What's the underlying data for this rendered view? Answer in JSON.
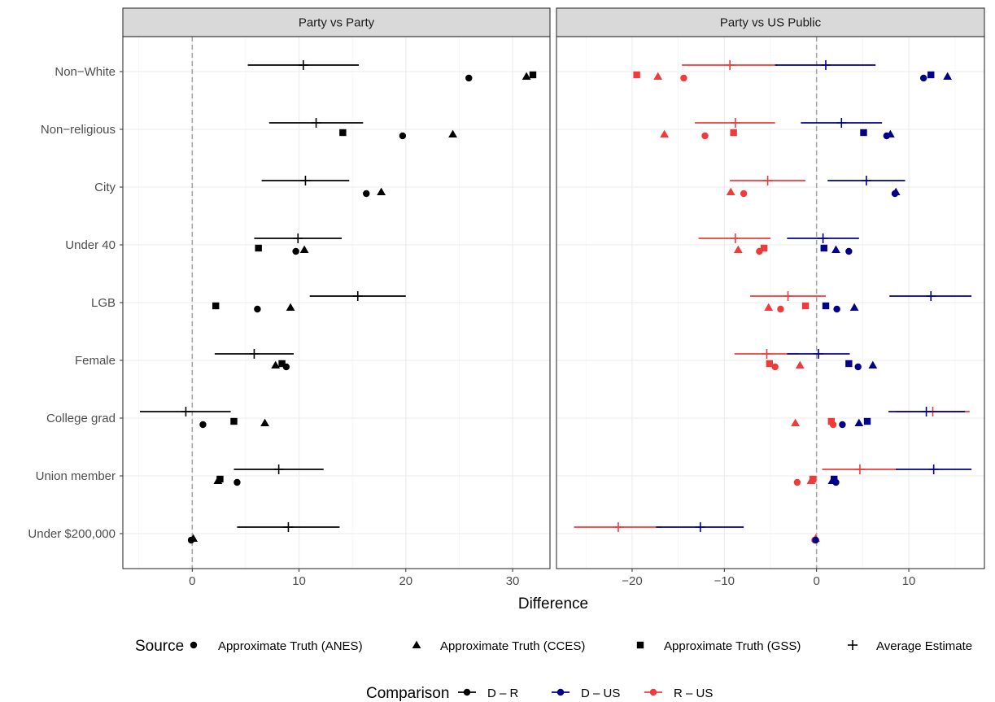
{
  "chart_data": {
    "type": "scatter",
    "xlabel": "Difference",
    "categories": [
      "Non−White",
      "Non−religious",
      "City",
      "Under 40",
      "LGB",
      "Female",
      "College grad",
      "Union member",
      "Under $200,000"
    ],
    "panels": [
      {
        "title": "Party vs Party",
        "xlim": [
          -6.5,
          33.5
        ],
        "xticks": [
          0,
          10,
          20,
          30
        ],
        "xtick_labels": [
          "0",
          "10",
          "20",
          "30"
        ],
        "comparisons": [
          {
            "name": "D – R",
            "color": "#000000",
            "estimates": [
              {
                "cat": 0,
                "est": 10.4,
                "lo": 5.2,
                "hi": 15.6
              },
              {
                "cat": 1,
                "est": 11.6,
                "lo": 7.2,
                "hi": 16.0
              },
              {
                "cat": 2,
                "est": 10.6,
                "lo": 6.5,
                "hi": 14.7
              },
              {
                "cat": 3,
                "est": 9.9,
                "lo": 5.8,
                "hi": 14.0
              },
              {
                "cat": 4,
                "est": 15.5,
                "lo": 11.0,
                "hi": 20.0
              },
              {
                "cat": 5,
                "est": 5.8,
                "lo": 2.1,
                "hi": 9.5
              },
              {
                "cat": 6,
                "est": -0.6,
                "lo": -4.9,
                "hi": 3.6
              },
              {
                "cat": 7,
                "est": 8.1,
                "lo": 3.9,
                "hi": 12.3
              },
              {
                "cat": 8,
                "est": 9.0,
                "lo": 4.2,
                "hi": 13.8
              }
            ],
            "truths": [
              {
                "cat": 0,
                "anes": 25.9,
                "cces": 31.3,
                "gss": 31.9
              },
              {
                "cat": 1,
                "anes": 19.7,
                "cces": 24.4,
                "gss": 14.1
              },
              {
                "cat": 2,
                "anes": 16.3,
                "cces": 17.7,
                "gss": null
              },
              {
                "cat": 3,
                "anes": 9.7,
                "cces": 10.5,
                "gss": 6.2
              },
              {
                "cat": 4,
                "anes": 6.1,
                "cces": 9.2,
                "gss": 2.2
              },
              {
                "cat": 5,
                "anes": 8.8,
                "cces": 7.8,
                "gss": 8.4
              },
              {
                "cat": 6,
                "anes": 1.0,
                "cces": 6.8,
                "gss": 3.9
              },
              {
                "cat": 7,
                "anes": 4.2,
                "cces": 2.4,
                "gss": 2.6
              },
              {
                "cat": 8,
                "anes": -0.1,
                "cces": 0.1,
                "gss": null
              }
            ]
          }
        ]
      },
      {
        "title": "Party vs US Public",
        "xlim": [
          -28.2,
          18.2
        ],
        "xticks": [
          -20,
          -10,
          0,
          10
        ],
        "xtick_labels": [
          "−20",
          "−10",
          "0",
          "10"
        ],
        "comparisons": [
          {
            "name": "R – US",
            "color": "#f03b3b",
            "estimates": [
              {
                "cat": 0,
                "est": -9.4,
                "lo": -14.6,
                "hi": -4.2
              },
              {
                "cat": 1,
                "est": -8.8,
                "lo": -13.2,
                "hi": -4.5
              },
              {
                "cat": 2,
                "est": -5.3,
                "lo": -9.4,
                "hi": -1.2
              },
              {
                "cat": 3,
                "est": -8.8,
                "lo": -12.8,
                "hi": -5.0
              },
              {
                "cat": 4,
                "est": -3.1,
                "lo": -7.2,
                "hi": 1.0
              },
              {
                "cat": 5,
                "est": -5.4,
                "lo": -8.9,
                "hi": -1.9
              },
              {
                "cat": 6,
                "est": 12.6,
                "lo": 8.6,
                "hi": 16.6
              },
              {
                "cat": 7,
                "est": 4.7,
                "lo": 0.6,
                "hi": 8.8
              },
              {
                "cat": 8,
                "est": -21.5,
                "lo": -26.3,
                "hi": -16.8
              }
            ],
            "truths": [
              {
                "cat": 0,
                "anes": -14.4,
                "cces": -17.2,
                "gss": -19.5
              },
              {
                "cat": 1,
                "anes": -12.1,
                "cces": -16.5,
                "gss": -9.0
              },
              {
                "cat": 2,
                "anes": -7.9,
                "cces": -9.3,
                "gss": null
              },
              {
                "cat": 3,
                "anes": -6.2,
                "cces": -8.5,
                "gss": -5.7
              },
              {
                "cat": 4,
                "anes": -3.9,
                "cces": -5.2,
                "gss": -1.2
              },
              {
                "cat": 5,
                "anes": -4.5,
                "cces": -1.8,
                "gss": -5.1
              },
              {
                "cat": 6,
                "anes": 1.8,
                "cces": -2.3,
                "gss": 1.6
              },
              {
                "cat": 7,
                "anes": -2.1,
                "cces": -0.6,
                "gss": -0.4
              },
              {
                "cat": 8,
                "anes": -0.2,
                "cces": -0.1,
                "gss": null
              }
            ]
          },
          {
            "name": "D – US",
            "color": "#00008b",
            "estimates": [
              {
                "cat": 0,
                "est": 1.0,
                "lo": -4.5,
                "hi": 6.4
              },
              {
                "cat": 1,
                "est": 2.7,
                "lo": -1.7,
                "hi": 7.1
              },
              {
                "cat": 2,
                "est": 5.4,
                "lo": 1.2,
                "hi": 9.6
              },
              {
                "cat": 3,
                "est": 0.7,
                "lo": -3.2,
                "hi": 4.6
              },
              {
                "cat": 4,
                "est": 12.4,
                "lo": 7.9,
                "hi": 16.8
              },
              {
                "cat": 5,
                "est": 0.2,
                "lo": -3.2,
                "hi": 3.6
              },
              {
                "cat": 6,
                "est": 11.9,
                "lo": 7.8,
                "hi": 16.1
              },
              {
                "cat": 7,
                "est": 12.7,
                "lo": 8.6,
                "hi": 16.8
              },
              {
                "cat": 8,
                "est": -12.6,
                "lo": -17.4,
                "hi": -7.9
              }
            ],
            "truths": [
              {
                "cat": 0,
                "anes": 11.6,
                "cces": 14.2,
                "gss": 12.4
              },
              {
                "cat": 1,
                "anes": 7.6,
                "cces": 8.0,
                "gss": 5.1
              },
              {
                "cat": 2,
                "anes": 8.5,
                "cces": 8.6,
                "gss": null
              },
              {
                "cat": 3,
                "anes": 3.5,
                "cces": 2.1,
                "gss": 0.8
              },
              {
                "cat": 4,
                "anes": 2.2,
                "cces": 4.1,
                "gss": 1.0
              },
              {
                "cat": 5,
                "anes": 4.5,
                "cces": 6.1,
                "gss": 3.5
              },
              {
                "cat": 6,
                "anes": 2.8,
                "cces": 4.6,
                "gss": 5.5
              },
              {
                "cat": 7,
                "anes": 2.1,
                "cces": 1.7,
                "gss": 1.9
              },
              {
                "cat": 8,
                "anes": -0.1,
                "cces": null,
                "gss": null
              }
            ]
          }
        ]
      }
    ],
    "legend": {
      "source_title": "Source",
      "source_items": [
        {
          "label": "Approximate Truth (ANES)",
          "shape": "circle"
        },
        {
          "label": "Approximate Truth (CCES)",
          "shape": "triangle"
        },
        {
          "label": "Approximate Truth (GSS)",
          "shape": "square"
        },
        {
          "label": "Average Estimate",
          "shape": "plus"
        }
      ],
      "comparison_title": "Comparison",
      "comparison_items": [
        {
          "label": "D – R",
          "color": "#000000"
        },
        {
          "label": "D – US",
          "color": "#00008b"
        },
        {
          "label": "R – US",
          "color": "#f03b3b"
        }
      ],
      "placement": "bottom"
    },
    "grid": true,
    "reference_line": 0
  }
}
